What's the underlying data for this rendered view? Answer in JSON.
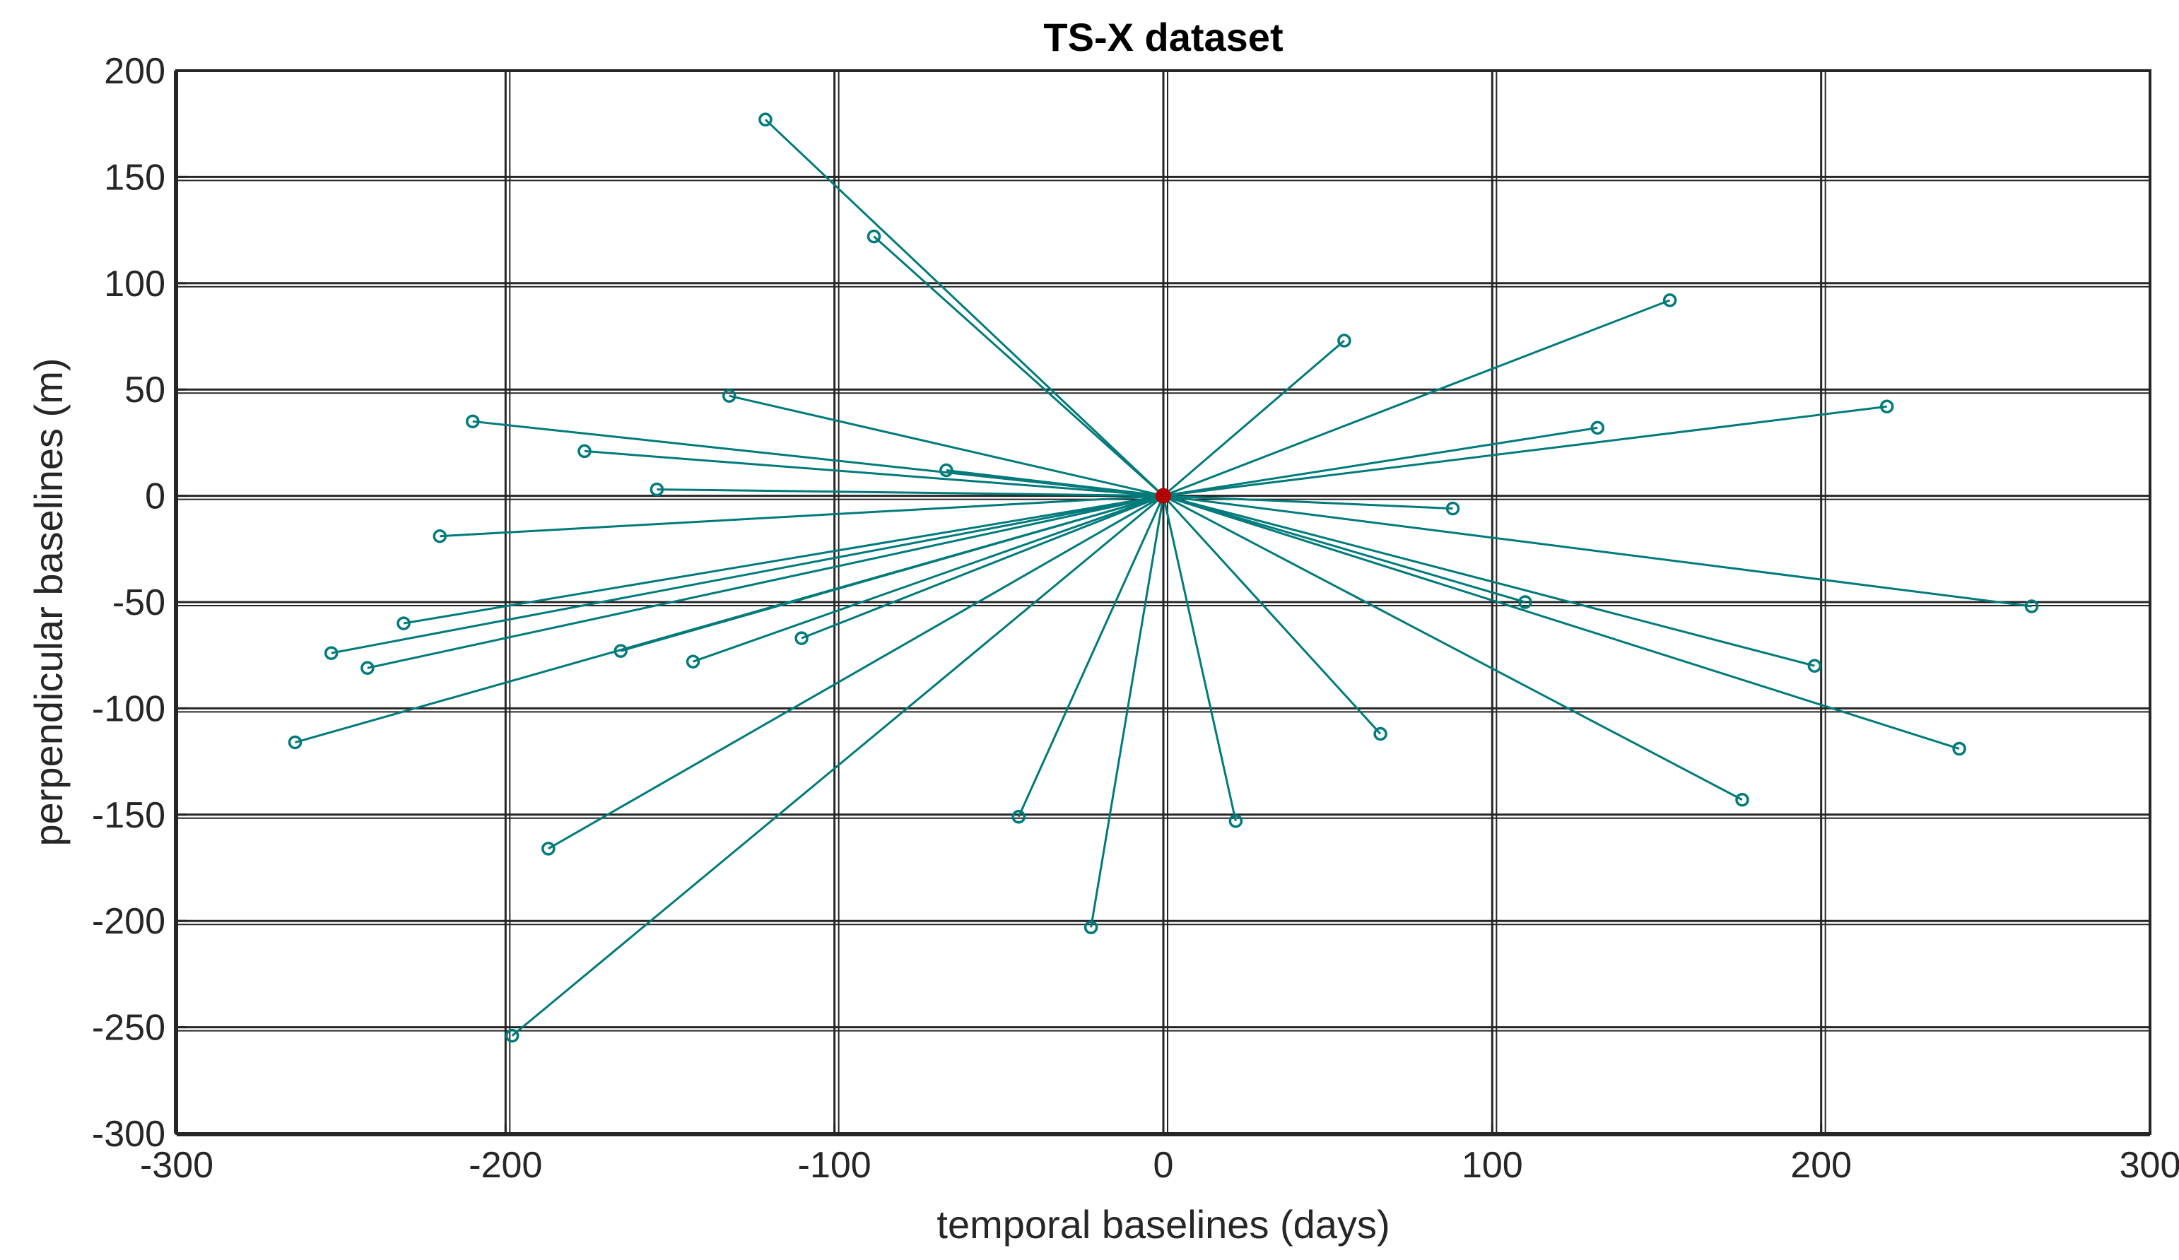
{
  "chart_data": {
    "type": "scatter",
    "title": "TS-X dataset",
    "xlabel": "temporal baselines (days)",
    "ylabel": "perpendicular baselines (m)",
    "xlim": [
      -300,
      300
    ],
    "ylim": [
      -300,
      200
    ],
    "xticks": [
      -300,
      -200,
      -100,
      0,
      100,
      200,
      300
    ],
    "yticks": [
      200,
      150,
      100,
      50,
      0,
      -50,
      -100,
      -150,
      -200,
      -250,
      -300
    ],
    "grid": true,
    "colors": {
      "lines": "#007a7a",
      "markers": "#007a7a",
      "reference": "#b30000",
      "grid": "#262626",
      "axes": "#262626"
    },
    "reference": {
      "x": 0,
      "y": 0
    },
    "points": [
      {
        "x": -121,
        "y": 177
      },
      {
        "x": -88,
        "y": 122
      },
      {
        "x": -132,
        "y": 47
      },
      {
        "x": -210,
        "y": 35
      },
      {
        "x": -176,
        "y": 21
      },
      {
        "x": -66,
        "y": 12
      },
      {
        "x": -154,
        "y": 3
      },
      {
        "x": -220,
        "y": -19
      },
      {
        "x": -231,
        "y": -60
      },
      {
        "x": -253,
        "y": -74
      },
      {
        "x": -242,
        "y": -81
      },
      {
        "x": -165,
        "y": -73
      },
      {
        "x": -143,
        "y": -78
      },
      {
        "x": -110,
        "y": -67
      },
      {
        "x": -264,
        "y": -116
      },
      {
        "x": -187,
        "y": -166
      },
      {
        "x": -198,
        "y": -254
      },
      {
        "x": -44,
        "y": -151
      },
      {
        "x": -22,
        "y": -203
      },
      {
        "x": 22,
        "y": -153
      },
      {
        "x": 55,
        "y": 73
      },
      {
        "x": 66,
        "y": -112
      },
      {
        "x": 88,
        "y": -6
      },
      {
        "x": 110,
        "y": -50
      },
      {
        "x": 132,
        "y": 32
      },
      {
        "x": 154,
        "y": 92
      },
      {
        "x": 176,
        "y": -143
      },
      {
        "x": 198,
        "y": -80
      },
      {
        "x": 220,
        "y": 42
      },
      {
        "x": 242,
        "y": -119
      },
      {
        "x": 264,
        "y": -52
      }
    ]
  }
}
